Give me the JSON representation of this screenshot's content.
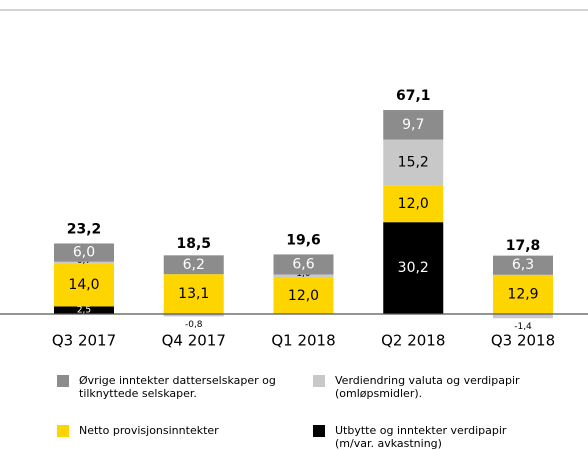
{
  "chart_data": {
    "type": "stacked_bar",
    "categories": [
      "Q3 2017",
      "Q4 2017",
      "Q1 2018",
      "Q2 2018",
      "Q3 2018"
    ],
    "series": [
      {
        "name": "Øvrige inntekter datterselskaper og tilknyttede selskaper.",
        "color": "#8c8c8c",
        "values": [
          6.0,
          6.2,
          6.6,
          9.7,
          6.3
        ],
        "value_labels": [
          "6,0",
          "6,2",
          "6,6",
          "9,7",
          "6,3"
        ]
      },
      {
        "name": "Verdiendring valuta og verdipapir (omløpsmidler).",
        "color": "#c8c8c8",
        "values": [
          0.7,
          -0.8,
          1.0,
          15.2,
          -1.4
        ],
        "value_labels": [
          "0,7",
          "-0,8",
          "1,0",
          "15,2",
          "-1,4"
        ]
      },
      {
        "name": "Netto provisjonsinntekter",
        "color": "#ffd500",
        "values": [
          14.0,
          13.1,
          12.0,
          12.0,
          12.9
        ],
        "value_labels": [
          "14,0",
          "13,1",
          "12,0",
          "12,0",
          "12,9"
        ]
      },
      {
        "name": "Utbytte og inntekter verdipapir (m/var. avkastning)",
        "color": "#000000",
        "values": [
          2.5,
          null,
          null,
          30.2,
          null
        ],
        "value_labels": [
          "2,5",
          null,
          null,
          "30,2",
          null
        ]
      }
    ],
    "totals": [
      23.2,
      18.5,
      19.6,
      67.1,
      17.8
    ],
    "total_labels": [
      "23,2",
      "18,5",
      "19,6",
      "67,1",
      "17,8"
    ]
  }
}
